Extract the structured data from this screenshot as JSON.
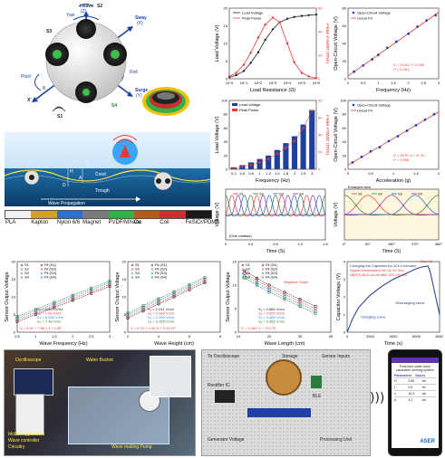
{
  "figure": {
    "robot_labels": {
      "heave": "Heave",
      "heave_axis": "(Z)",
      "yaw": "Yaw",
      "sway": "Sway",
      "sway_axis": "(X)",
      "pitch": "Pitch",
      "roll": "Roll",
      "surge": "Surge",
      "surge_axis": "(Y)",
      "s1": "S1",
      "s2": "S2",
      "s3": "S3",
      "s4": "S4",
      "xprime": "X'",
      "theta": "θ"
    },
    "wave_labels": {
      "title": "Wave Propagation",
      "lambda": "λ",
      "h": "H",
      "crest": "Crest",
      "trough": "Trough",
      "d": "D",
      "a": "A"
    },
    "materials": [
      {
        "label": "PLA",
        "color": "#f2f2f2"
      },
      {
        "label": "Kapton",
        "color": "#d4a02a"
      },
      {
        "label": "Nylon 6/6",
        "color": "#2f6fd0"
      },
      {
        "label": "Magnet",
        "color": "#7a7a7a"
      },
      {
        "label": "PVDF/MXene",
        "color": "#2db34a"
      },
      {
        "label": "Cu",
        "color": "#b35a1f"
      },
      {
        "label": "Coil",
        "color": "#c83030"
      },
      {
        "label": "FeSiCr/PDMS",
        "color": "#1a1a1a"
      }
    ],
    "photo_left": {
      "oscilloscope": "Oscilloscope",
      "water_bucket": "Water Bucket",
      "mobile": "Mobile Application",
      "wave_controller": "Wave controller",
      "circuitry": "Circuitry",
      "wave_making": "Wave making Pump"
    },
    "photo_mid": {
      "to_osc": "To Oscilloscope",
      "storage": "Storage",
      "sensor_inputs": "Sensor Inputs",
      "rectifier": "Rectifier IC",
      "ble": "BLE",
      "generator": "Generator Voltage",
      "processing": "Processing Unit"
    },
    "phone": {
      "title": "Real-time water wave parameter sensing system",
      "col1": "Parameters",
      "col2": "Values",
      "rows": [
        [
          "H",
          "2.66",
          "cm"
        ],
        [
          "f",
          "0.8",
          "Hz"
        ],
        [
          "λ",
          "16.9",
          "cm"
        ],
        [
          "A",
          "3.1",
          "cm"
        ]
      ],
      "brand": "ASER"
    }
  },
  "chart_data": [
    {
      "type": "line",
      "id": "load_resistance",
      "xlabel": "Load Resistance (Ω)",
      "ylabel": "Load Voltage (V)",
      "y2label": "Peak Power (mW)",
      "xscale": "log",
      "xlim": [
        1,
        1000000
      ],
      "ylim": [
        0,
        20
      ],
      "y2lim": [
        0,
        60
      ],
      "xticks": [
        "10^0",
        "10^1",
        "10^2",
        "10^3",
        "10^4",
        "10^5",
        "10^6"
      ],
      "yticks": [
        0,
        5,
        10,
        15,
        20
      ],
      "y2ticks": [
        0,
        20,
        40,
        60
      ],
      "series": [
        {
          "name": "Load Voltage",
          "axis": "y",
          "color": "#222",
          "x": [
            1,
            3,
            10,
            30,
            100,
            300,
            1000,
            3000,
            10000,
            30000,
            100000,
            300000,
            1000000
          ],
          "values": [
            0.4,
            1.0,
            2.2,
            4.5,
            7.5,
            11,
            14,
            16,
            17,
            17.5,
            17.8,
            18,
            18.2
          ]
        },
        {
          "name": "Peak Power",
          "axis": "y2",
          "color": "#e53935",
          "x": [
            1,
            3,
            10,
            30,
            100,
            300,
            1000,
            3000,
            10000,
            30000,
            100000,
            300000,
            1000000
          ],
          "values": [
            2,
            5,
            12,
            22,
            35,
            46,
            52,
            48,
            30,
            14,
            5,
            2,
            0.5
          ]
        }
      ],
      "annotation": ""
    },
    {
      "type": "scatter",
      "id": "ocv_frequency",
      "xlabel": "Frequency (Hz)",
      "ylabel": "Open-Circuit Voltage (V)",
      "xlim": [
        0,
        3
      ],
      "ylim": [
        0,
        80
      ],
      "xticks": [
        0,
        0.5,
        1,
        1.5,
        2,
        2.5,
        3
      ],
      "yticks": [
        0,
        20,
        40,
        60,
        80
      ],
      "series": [
        {
          "name": "Open-Circuit Voltage",
          "color": "#2f3fa8",
          "x": [
            0.2,
            0.5,
            0.8,
            1.0,
            1.3,
            1.6,
            2.0,
            2.3,
            2.6,
            2.9
          ],
          "values": [
            8,
            15,
            22,
            27,
            35,
            42,
            51,
            59,
            66,
            72
          ]
        }
      ],
      "fit": {
        "name": "Linear Fit",
        "color": "#e53935",
        "eq": "V = 24.61 f + 0.995",
        "r2": "r² = 0.991"
      }
    },
    {
      "type": "bar",
      "id": "bar_frequency",
      "xlabel": "Frequency (Hz)",
      "ylabel": "Load Voltage (V)",
      "y2label": "Peak Power (mW)",
      "categories": [
        "0.2",
        "0.5",
        "0.8",
        "1",
        "1.2",
        "1.5",
        "1.8",
        "2",
        "2.5",
        "3"
      ],
      "ylim": [
        0,
        100
      ],
      "y2lim": [
        0,
        80
      ],
      "yticks": [
        0,
        20,
        40,
        60,
        80,
        100
      ],
      "y2ticks": [
        0,
        20,
        40,
        60,
        80
      ],
      "series": [
        {
          "name": "Load Voltage",
          "color": "#1f3f9f",
          "values": [
            3,
            6,
            10,
            15,
            20,
            28,
            38,
            48,
            65,
            86
          ]
        },
        {
          "name": "Peak Power",
          "color": "#e53935",
          "axis": "y2",
          "values": [
            1,
            3,
            5,
            8,
            12,
            18,
            25,
            33,
            48,
            68
          ]
        }
      ]
    },
    {
      "type": "scatter",
      "id": "ocv_acceleration",
      "xlabel": "Acceleration (g)",
      "ylabel": "Open-Circuit Voltage (V)",
      "xlim": [
        0,
        2
      ],
      "ylim": [
        0,
        100
      ],
      "xticks": [
        0,
        0.5,
        1,
        1.5,
        2
      ],
      "yticks": [
        0,
        20,
        40,
        60,
        80,
        100
      ],
      "series": [
        {
          "name": "Open-Circuit Voltage",
          "color": "#2f3fa8",
          "x": [
            0.1,
            0.3,
            0.5,
            0.7,
            0.9,
            1.1,
            1.3,
            1.5,
            1.7,
            1.9
          ],
          "values": [
            10,
            18,
            26,
            32,
            41,
            48,
            56,
            64,
            72,
            80
          ]
        }
      ],
      "fit": {
        "name": "Linear Fit",
        "color": "#e53935",
        "eq": "V = 39.57 a + 3* 33",
        "r2": "r² = 0.996"
      }
    },
    {
      "type": "line",
      "id": "time_signals",
      "xlabel": "Time (S)",
      "ylabel": "Voltage (V)",
      "xlim": [
        0,
        1.6
      ],
      "xticks": [
        0,
        0.4,
        0.8,
        1.2,
        1.6
      ],
      "legend": [
        "S1",
        "S2",
        "S3",
        "S4"
      ],
      "colors": [
        "#e53935",
        "#2e7d32",
        "#1565c0",
        "#8e24aa"
      ],
      "annotation": "(One rotation)"
    },
    {
      "type": "line",
      "id": "enlarged",
      "xlabel": "Time (S)",
      "ylabel": "Voltage (V)",
      "title": "Enlarged view",
      "xticks": [
        "0°",
        "90°",
        "180°",
        "270°",
        "360°"
      ],
      "legend": [
        "S1",
        "S2",
        "S3",
        "S4"
      ],
      "colors": [
        "#e53935",
        "#2e7d32",
        "#1565c0",
        "#8e24aa"
      ]
    },
    {
      "type": "scatter",
      "id": "wave_frequency",
      "xlabel": "Wave Frequency (Hz)",
      "ylabel": "Sensor Output Voltage",
      "xlim": [
        0.5,
        3
      ],
      "ylim": [
        0,
        20
      ],
      "xticks": [
        0.5,
        1,
        1.5,
        2,
        2.5,
        3
      ],
      "yticks": [
        0,
        5,
        10,
        15,
        20
      ],
      "legend": [
        "S1",
        "S2",
        "S3",
        "S4",
        "Fit (S1)",
        "Fit (S2)",
        "Fit (S3)",
        "Fit (S4)"
      ],
      "colors": [
        "#222",
        "#e53935",
        "#1e88e5",
        "#2e7d32"
      ],
      "series": [
        {
          "name": "S1",
          "values": [
            3,
            5,
            7,
            9,
            11,
            13
          ]
        },
        {
          "name": "S2",
          "values": [
            3.5,
            5.5,
            7.5,
            9.5,
            11.5,
            13.5
          ]
        },
        {
          "name": "S3",
          "values": [
            4,
            6,
            8,
            10,
            12,
            14
          ]
        },
        {
          "name": "S4",
          "values": [
            4.5,
            6.5,
            8.5,
            10.5,
            12.5,
            14.5
          ]
        }
      ],
      "x": [
        0.5,
        1,
        1.5,
        2,
        2.5,
        3
      ],
      "eqs": [
        "S₁ = 4.623 V/Hz",
        "S₂ = 7.50 V/Hz",
        "S₃ = 6.535 V/Hz",
        "S₄ = 7.48 V/Hz"
      ],
      "fit_eq": "V = 4.61 + 7.56 × f + 0.3f²"
    },
    {
      "type": "scatter",
      "id": "wave_height",
      "xlabel": "Wave Height (cm)",
      "ylabel": "Sensor Output Voltage",
      "xlim": [
        2,
        8
      ],
      "ylim": [
        0,
        20
      ],
      "xticks": [
        2,
        4,
        6,
        8
      ],
      "yticks": [
        0,
        5,
        10,
        15,
        20
      ],
      "legend": [
        "S1",
        "S2",
        "S3",
        "S4",
        "Fit (S1)",
        "Fit (S2)",
        "Fit (S3)",
        "Fit (S4)"
      ],
      "colors": [
        "#222",
        "#e53935",
        "#1e88e5",
        "#2e7d32"
      ],
      "series": [
        {
          "name": "S1",
          "values": [
            4,
            6,
            8,
            10,
            12,
            14
          ]
        },
        {
          "name": "S2",
          "values": [
            4.5,
            6.5,
            8.5,
            10.5,
            12.5,
            14.5
          ]
        },
        {
          "name": "S3",
          "values": [
            5,
            7,
            9,
            11,
            13,
            15
          ]
        },
        {
          "name": "S4",
          "values": [
            5.5,
            7.5,
            9.5,
            11.5,
            13.5,
            15.5
          ]
        }
      ],
      "x": [
        2,
        3,
        4,
        5,
        6,
        7
      ],
      "eqs": [
        "S₁ = 2.241 V/cm",
        "S₂ = 2.969 V/cm",
        "S₃ = 2.240 V/cm",
        "S₄ = 2.056 V/cm"
      ],
      "fit_eq": "V = 0.79 + 2.44 H + 0.24 H²"
    },
    {
      "type": "scatter",
      "id": "wave_length",
      "xlabel": "Wave Length (cm)",
      "ylabel": "Sensor Output Voltage",
      "xlim": [
        10,
        40
      ],
      "ylim": [
        0,
        15
      ],
      "xticks": [
        10,
        20,
        30,
        40
      ],
      "yticks": [
        0,
        5,
        10,
        15
      ],
      "legend": [
        "S1",
        "S2",
        "S3",
        "S4",
        "Fit (S1)",
        "Fit (S2)",
        "Fit (S3)",
        "Fit (S4)"
      ],
      "colors": [
        "#222",
        "#e53935",
        "#1e88e5",
        "#2e7d32"
      ],
      "series": [
        {
          "name": "S1",
          "values": [
            13,
            11.5,
            10,
            8.5,
            7,
            5.5
          ]
        },
        {
          "name": "S2",
          "values": [
            12.5,
            11,
            9.5,
            8,
            6.5,
            5
          ]
        },
        {
          "name": "S3",
          "values": [
            12,
            10.5,
            9,
            7.5,
            6,
            4.5
          ]
        },
        {
          "name": "S4",
          "values": [
            11.5,
            10,
            8.5,
            7,
            5.5,
            4
          ]
        }
      ],
      "x": [
        12,
        16,
        20,
        25,
        30,
        35
      ],
      "eqs": [
        "S₁ = 0.665 V/cm",
        "S₂ = 0.657 V/cm",
        "S₃ = 0.682 V/cm",
        "S₄ = 0.662 V/cm"
      ],
      "fit_eq": "V = -0.667 λ + 25.175",
      "annotation": "Negative Slope"
    },
    {
      "type": "line",
      "id": "capacitor",
      "xlabel": "Time (s)",
      "ylabel": "Capacitor Voltage (V)",
      "xlim": [
        0,
        8000
      ],
      "ylim": [
        0,
        4
      ],
      "xticks": [
        0,
        2000,
        4000,
        6000,
        8000
      ],
      "yticks": [
        0,
        1,
        2,
        3,
        4
      ],
      "series": [
        {
          "name": "Charging",
          "color": "#1e3a8a",
          "x": [
            0,
            500,
            1000,
            2000,
            3000,
            4000,
            5000,
            6000,
            6500,
            7000,
            7200,
            7600,
            8000
          ],
          "values": [
            0,
            0.8,
            1.4,
            2.1,
            2.6,
            3.0,
            3.3,
            3.6,
            3.7,
            3.75,
            3.4,
            2.2,
            1.0
          ]
        }
      ],
      "notes": [
        "Charging the Capacitor for 124.0 minutes",
        "Signal transmission for 51.26 Sec",
        "NB/DX-BLE-on-off after 220.09 Sec"
      ],
      "labels": [
        "Charging curve",
        "Discharging curve",
        "Stop 1s"
      ]
    }
  ]
}
